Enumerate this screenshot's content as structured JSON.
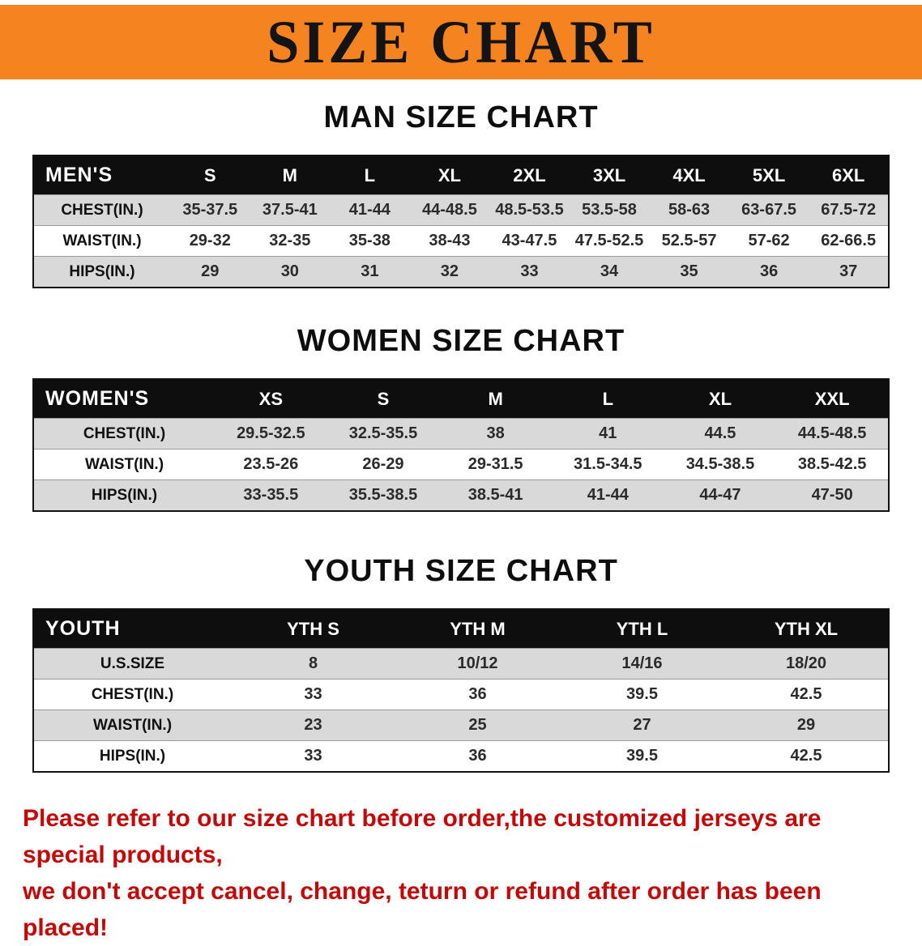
{
  "banner": {
    "title": "SIZE CHART",
    "bg_color": "#f5831f",
    "text_color": "#141414"
  },
  "sections": [
    {
      "title": "MAN SIZE CHART",
      "table": {
        "header": [
          "MEN'S",
          "S",
          "M",
          "L",
          "XL",
          "2XL",
          "3XL",
          "4XL",
          "5XL",
          "6XL"
        ],
        "rows": [
          [
            "CHEST(IN.)",
            "35-37.5",
            "37.5-41",
            "41-44",
            "44-48.5",
            "48.5-53.5",
            "53.5-58",
            "58-63",
            "63-67.5",
            "67.5-72"
          ],
          [
            "WAIST(IN.)",
            "29-32",
            "32-35",
            "35-38",
            "38-43",
            "43-47.5",
            "47.5-52.5",
            "52.5-57",
            "57-62",
            "62-66.5"
          ],
          [
            "HIPS(IN.)",
            "29",
            "30",
            "31",
            "32",
            "33",
            "34",
            "35",
            "36",
            "37"
          ]
        ]
      }
    },
    {
      "title": "WOMEN SIZE CHART",
      "table": {
        "header": [
          "WOMEN'S",
          "XS",
          "S",
          "M",
          "L",
          "XL",
          "XXL"
        ],
        "rows": [
          [
            "CHEST(IN.)",
            "29.5-32.5",
            "32.5-35.5",
            "38",
            "41",
            "44.5",
            "44.5-48.5"
          ],
          [
            "WAIST(IN.)",
            "23.5-26",
            "26-29",
            "29-31.5",
            "31.5-34.5",
            "34.5-38.5",
            "38.5-42.5"
          ],
          [
            "HIPS(IN.)",
            "33-35.5",
            "35.5-38.5",
            "38.5-41",
            "41-44",
            "44-47",
            "47-50"
          ]
        ]
      }
    },
    {
      "title": "YOUTH SIZE CHART",
      "table": {
        "header": [
          "YOUTH",
          "YTH S",
          "YTH M",
          "YTH L",
          "YTH XL"
        ],
        "rows": [
          [
            "U.S.SIZE",
            "8",
            "10/12",
            "14/16",
            "18/20"
          ],
          [
            "CHEST(IN.)",
            "33",
            "36",
            "39.5",
            "42.5"
          ],
          [
            "WAIST(IN.)",
            "23",
            "25",
            "27",
            "29"
          ],
          [
            "HIPS(IN.)",
            "33",
            "36",
            "39.5",
            "42.5"
          ]
        ]
      }
    }
  ],
  "disclaimer": {
    "line1": "Please refer to our size chart before order,the customized jerseys are special products,",
    "line2": "we don't accept cancel, change, teturn or refund after order has been placed!",
    "color": "#c40808"
  }
}
